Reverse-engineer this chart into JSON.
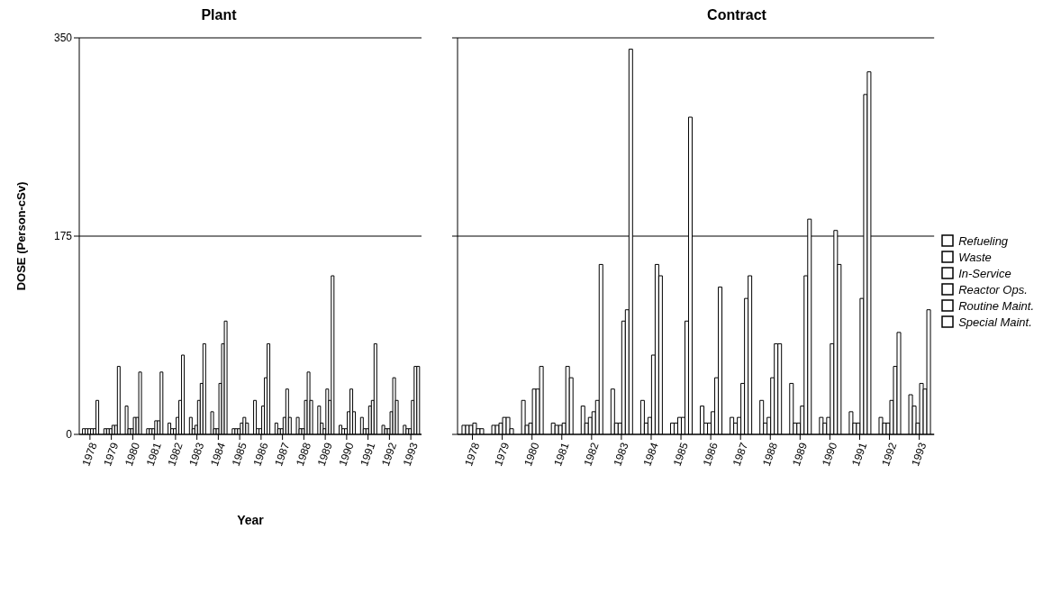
{
  "chart_data": [
    {
      "type": "bar",
      "title": "Plant",
      "xlabel": "Year",
      "ylabel": "DOSE (Person-cSv)",
      "categories": [
        "1978",
        "1979",
        "1980",
        "1981",
        "1982",
        "1983",
        "1984",
        "1985",
        "1986",
        "1987",
        "1988",
        "1989",
        "1990",
        "1991",
        "1992",
        "1993"
      ],
      "ylim": [
        0,
        350
      ],
      "yticks": [
        0,
        175,
        350
      ],
      "grid": "y",
      "legend": false,
      "series": [
        {
          "color": "#ffffff",
          "values": [
            5,
            5,
            25,
            5,
            10,
            15,
            20,
            5,
            30,
            10,
            15,
            25,
            8,
            15,
            8,
            8
          ]
        },
        {
          "color": "#ffffff",
          "values": [
            5,
            5,
            5,
            5,
            5,
            5,
            5,
            5,
            5,
            5,
            5,
            10,
            5,
            5,
            5,
            5
          ]
        },
        {
          "color": "#ffffff",
          "values": [
            5,
            5,
            5,
            5,
            5,
            8,
            5,
            5,
            5,
            5,
            5,
            5,
            5,
            5,
            5,
            5
          ]
        },
        {
          "color": "#ffffff",
          "values": [
            5,
            8,
            15,
            12,
            15,
            30,
            45,
            10,
            25,
            15,
            30,
            40,
            20,
            25,
            20,
            30
          ]
        },
        {
          "color": "#ffffff",
          "values": [
            5,
            8,
            15,
            12,
            30,
            45,
            80,
            15,
            50,
            40,
            55,
            30,
            40,
            30,
            50,
            60
          ]
        },
        {
          "color": "#ffffff",
          "values": [
            30,
            60,
            55,
            55,
            70,
            80,
            100,
            10,
            80,
            15,
            30,
            140,
            20,
            80,
            30,
            60
          ]
        }
      ]
    },
    {
      "type": "bar",
      "title": "Contract",
      "categories": [
        "1978",
        "1979",
        "1980",
        "1981",
        "1982",
        "1983",
        "1984",
        "1985",
        "1986",
        "1987",
        "1988",
        "1989",
        "1990",
        "1991",
        "1992",
        "1993"
      ],
      "ylim": [
        0,
        350
      ],
      "yticks": [
        0,
        175,
        350
      ],
      "grid": "y",
      "legend": "right",
      "tick_labels": "x",
      "series": [
        {
          "name": "Refueling",
          "color": "#ffffff",
          "values": [
            8,
            8,
            30,
            10,
            25,
            40,
            30,
            10,
            25,
            15,
            30,
            45,
            15,
            20,
            15,
            35
          ]
        },
        {
          "name": "Waste",
          "color": "#ffffff",
          "values": [
            8,
            8,
            8,
            8,
            10,
            10,
            10,
            10,
            10,
            10,
            10,
            10,
            10,
            10,
            10,
            25
          ]
        },
        {
          "name": "In-Service",
          "color": "#ffffff",
          "values": [
            8,
            10,
            10,
            8,
            15,
            10,
            15,
            15,
            10,
            15,
            15,
            10,
            15,
            10,
            10,
            10
          ]
        },
        {
          "name": "Reactor Ops.",
          "color": "#ffffff",
          "values": [
            10,
            15,
            40,
            10,
            20,
            100,
            70,
            15,
            20,
            45,
            50,
            25,
            80,
            120,
            30,
            45
          ]
        },
        {
          "name": "Routine Maint.",
          "color": "#ffffff",
          "values": [
            5,
            15,
            40,
            60,
            30,
            110,
            150,
            100,
            50,
            120,
            80,
            140,
            180,
            300,
            60,
            40
          ]
        },
        {
          "name": "Special Maint.",
          "color": "#ffffff",
          "values": [
            5,
            5,
            60,
            50,
            150,
            340,
            140,
            280,
            130,
            140,
            80,
            190,
            150,
            320,
            90,
            110
          ]
        }
      ]
    }
  ]
}
